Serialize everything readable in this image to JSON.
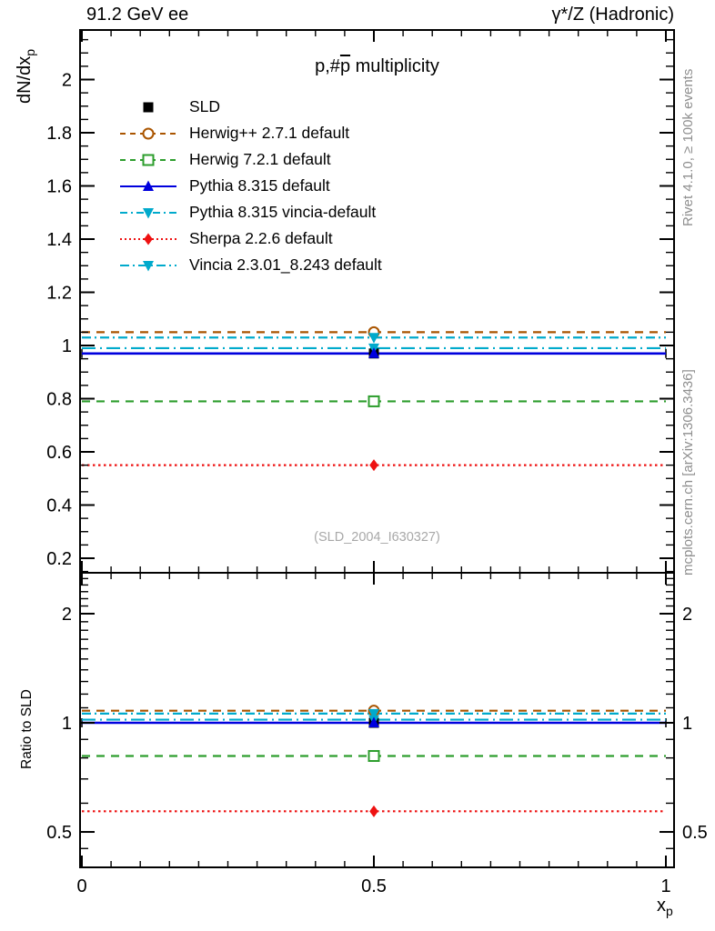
{
  "header": {
    "left": "91.2 GeV ee",
    "right": "γ*/Z (Hadronic)"
  },
  "title": {
    "pre": "p,#",
    "bar": "p",
    "post": " multiplicity"
  },
  "watermark": "(SLD_2004_I630327)",
  "side_notes": {
    "rivet": "Rivet 4.1.0, ≥ 100k events",
    "mcplots": "mcplots.cern.ch [arXiv:1306.3436]"
  },
  "axis_labels": {
    "y_main": "dN/dx",
    "y_main_sub": "p",
    "y_ratio": "Ratio to SLD",
    "x": "x",
    "x_sub": "p"
  },
  "chart_data": {
    "type": "line",
    "title": "p,#p̄ multiplicity",
    "xlabel": "x_p",
    "grid": false,
    "legend_position": "top-left",
    "x": {
      "lim": [
        0,
        1.014
      ],
      "major_ticks": [
        0,
        0.5,
        1
      ],
      "tick_labels": [
        "0",
        "0.5",
        "1"
      ],
      "minor_step": 0.05
    },
    "panels": {
      "main": {
        "ylabel": "dN/dx_p",
        "scale": "linear",
        "ylim": [
          0.145,
          2.19
        ],
        "yticks": [
          0.2,
          0.4,
          0.6,
          0.8,
          1.0,
          1.2,
          1.4,
          1.6,
          1.8,
          2.0
        ],
        "ytick_labels": [
          "0.2",
          "0.4",
          "0.6",
          "0.8",
          "1",
          "1.2",
          "1.4",
          "1.6",
          "1.8",
          "2"
        ],
        "yminor_step": 0.05
      },
      "ratio": {
        "ylabel": "Ratio to SLD",
        "scale": "log",
        "ylim": [
          0.4,
          2.59
        ],
        "yticks": [
          0.5,
          1,
          2
        ],
        "ytick_labels": [
          "0.5",
          "1",
          "2"
        ],
        "yminors": [
          0.45,
          0.6,
          0.7,
          0.8,
          0.9,
          1.1,
          1.2,
          1.3,
          1.4,
          1.5,
          1.6,
          1.7,
          1.8,
          1.9,
          2.1,
          2.2,
          2.3,
          2.4,
          2.5
        ]
      }
    },
    "bin": {
      "x_center": 0.5,
      "x_range": [
        0,
        1
      ]
    },
    "series": [
      {
        "name": "SLD",
        "role": "data",
        "color": "#000000",
        "line": "none",
        "marker": "filled-square",
        "value": 0.97,
        "ratio": 1.0
      },
      {
        "name": "Herwig++ 2.7.1 default",
        "role": "mc",
        "color": "#aa5500",
        "line": "dashed",
        "marker": "open-circle",
        "value": 1.05,
        "ratio": 1.08
      },
      {
        "name": "Herwig 7.2.1 default",
        "role": "mc",
        "color": "#2d9e2d",
        "line": "dashed",
        "marker": "open-square",
        "value": 0.79,
        "ratio": 0.81
      },
      {
        "name": "Pythia 8.315 default",
        "role": "mc",
        "color": "#0000dd",
        "line": "solid",
        "marker": "filled-triangle-up",
        "value": 0.97,
        "ratio": 1.0
      },
      {
        "name": "Pythia 8.315 vincia-default",
        "role": "mc",
        "color": "#00aacc",
        "line": "dashdot",
        "marker": "filled-triangle-down",
        "value": 1.03,
        "ratio": 1.06
      },
      {
        "name": "Sherpa 2.2.6 default",
        "role": "mc",
        "color": "#ee1111",
        "line": "dotted",
        "marker": "filled-diamond",
        "value": 0.55,
        "ratio": 0.57
      },
      {
        "name": "Vincia 2.3.01_8.243 default",
        "role": "mc",
        "color": "#00aacc",
        "line": "dashdot2",
        "marker": "filled-triangle-down",
        "value": 0.99,
        "ratio": 1.02
      }
    ]
  }
}
